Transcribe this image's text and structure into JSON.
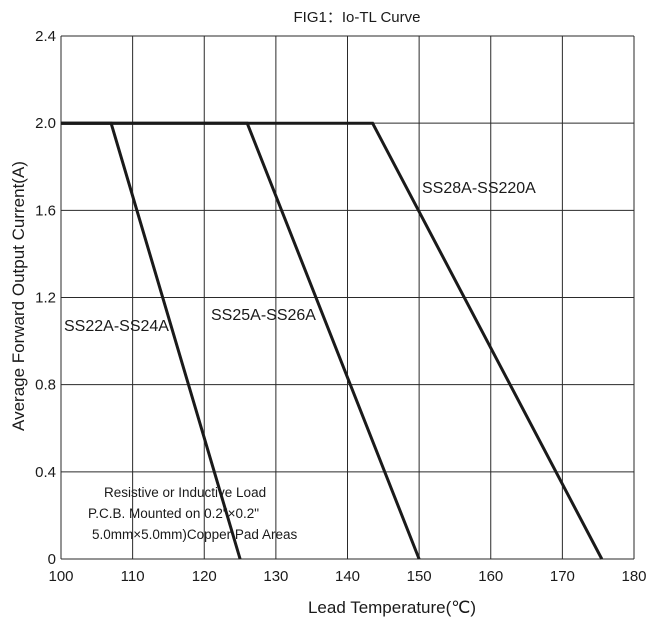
{
  "chart_data": {
    "type": "line",
    "title": "FIG1：Io-TL Curve",
    "xlabel": "Lead Temperature(℃)",
    "ylabel": "Average Forward Output Current(A)",
    "xlim": [
      100,
      180
    ],
    "ylim": [
      0,
      2.4
    ],
    "x_ticks": [
      "100",
      "110",
      "120",
      "130",
      "140",
      "150",
      "160",
      "170",
      "180"
    ],
    "y_ticks": [
      "0",
      "0.4",
      "0.8",
      "1.2",
      "1.6",
      "2.0",
      "2.4"
    ],
    "grid": true,
    "series": [
      {
        "name": "SS22A-SS24A",
        "points": [
          [
            100,
            2.0
          ],
          [
            107,
            2.0
          ],
          [
            125,
            0
          ]
        ]
      },
      {
        "name": "SS25A-SS26A",
        "points": [
          [
            100,
            2.0
          ],
          [
            126,
            2.0
          ],
          [
            150,
            0
          ]
        ]
      },
      {
        "name": "SS28A-SS220A",
        "points": [
          [
            100,
            2.0
          ],
          [
            143.5,
            2.0
          ],
          [
            175.5,
            0
          ]
        ]
      }
    ],
    "annotations": [
      "Resistive or Inductive Load",
      "P.C.B. Mounted on 0.2\"×0.2\"",
      "5.0mm×5.0mm)Copper Pad Areas"
    ],
    "line_color": "#1a1a1a",
    "grid_color": "#2a2a2a"
  }
}
